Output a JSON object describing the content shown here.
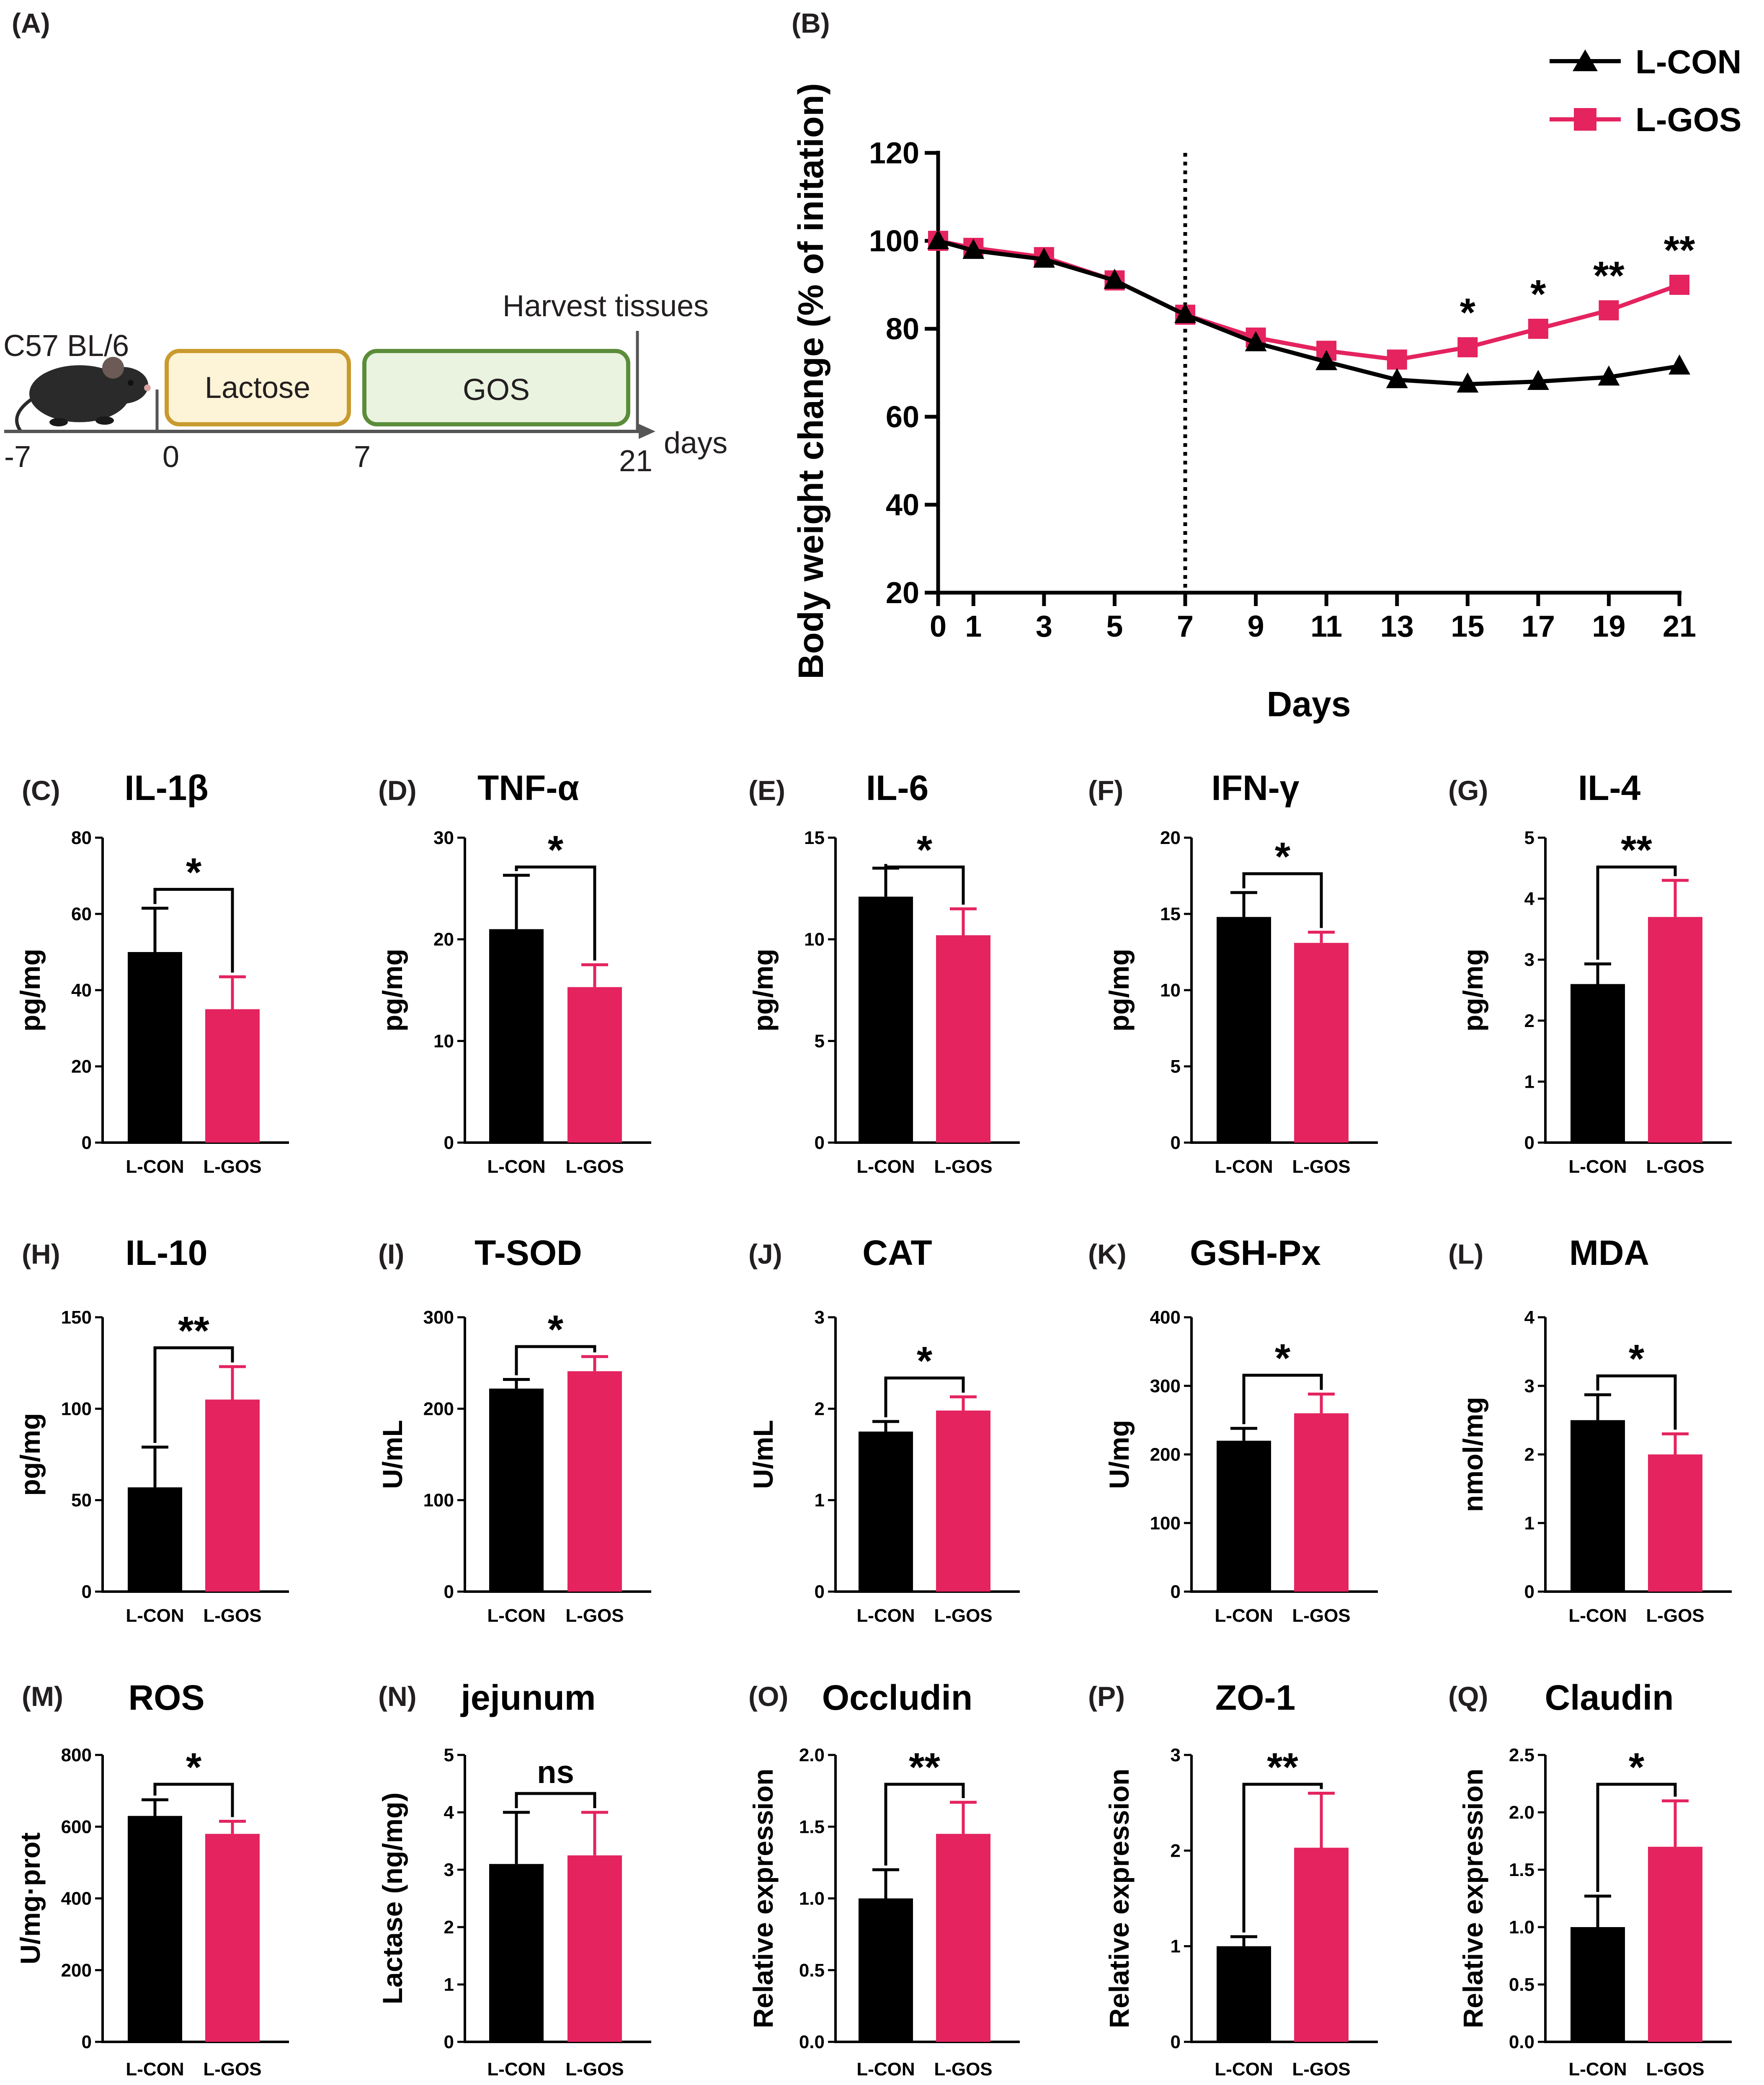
{
  "colors": {
    "con": "#000000",
    "gos": "#e4235f",
    "lactose_border": "#c99a2e",
    "lactose_fill": "#fdf3d6",
    "gos_border": "#5b8c3a",
    "gos_fill": "#e9f3df"
  },
  "panel_a": {
    "label": "(A)",
    "mouse_label": "C57 BL/6",
    "harvest_label": "Harvest tissues",
    "lactose_label": "Lactose",
    "gos_label": "GOS",
    "axis_unit": "days",
    "ticks": [
      "-7",
      "0",
      "7",
      "21"
    ],
    "mouse_icon": "mouse-icon"
  },
  "panel_b": {
    "label": "(B)",
    "chart_data": {
      "type": "line",
      "xlabel": "Days",
      "ylabel": "Body weight change (% of initation)",
      "x": [
        0,
        1,
        3,
        5,
        7,
        9,
        11,
        13,
        15,
        17,
        19,
        21
      ],
      "xticks": [
        "0",
        "1",
        "3",
        "5",
        "7",
        "9",
        "11",
        "13",
        "15",
        "17",
        "19",
        "21"
      ],
      "yticks": [
        "20",
        "40",
        "60",
        "80",
        "100",
        "120"
      ],
      "ylim": [
        20,
        120
      ],
      "xlim": [
        0,
        21
      ],
      "vline_x": 7,
      "series": [
        {
          "name": "L-CON",
          "marker": "triangle",
          "values": [
            100,
            97.8,
            95.8,
            91,
            83.2,
            76.8,
            72.5,
            68.4,
            67.4,
            68,
            69,
            71.5
          ]
        },
        {
          "name": "L-GOS",
          "marker": "square",
          "values": [
            100,
            98.4,
            96.3,
            91,
            83.2,
            78,
            75,
            73,
            75.8,
            80,
            84.2,
            90
          ]
        }
      ],
      "annotations": [
        {
          "x": 15,
          "text": "*"
        },
        {
          "x": 17,
          "text": "*"
        },
        {
          "x": 19,
          "text": "**"
        },
        {
          "x": 21,
          "text": "**"
        }
      ],
      "legend_position": "top-right"
    }
  },
  "bar_panels": [
    {
      "label": "(C)",
      "title": "IL-1β",
      "ylabel": "pg/mg",
      "yticks": [
        "0",
        "20",
        "40",
        "60",
        "80"
      ],
      "ymax": 80,
      "categories": [
        "L-CON",
        "L-GOS"
      ],
      "values": [
        50,
        35
      ],
      "errors": [
        11.5,
        8.5
      ],
      "sig": "*"
    },
    {
      "label": "(D)",
      "title": "TNF-α",
      "ylabel": "pg/mg",
      "yticks": [
        "0",
        "10",
        "20",
        "30"
      ],
      "ymax": 30,
      "categories": [
        "L-CON",
        "L-GOS"
      ],
      "values": [
        21,
        15.3
      ],
      "errors": [
        5.3,
        2.2
      ],
      "sig": "*"
    },
    {
      "label": "(E)",
      "title": "IL-6",
      "ylabel": "pg/mg",
      "yticks": [
        "0",
        "5",
        "10",
        "15"
      ],
      "ymax": 15,
      "categories": [
        "L-CON",
        "L-GOS"
      ],
      "values": [
        12.1,
        10.2
      ],
      "errors": [
        1.4,
        1.3
      ],
      "sig": "*"
    },
    {
      "label": "(F)",
      "title": "IFN-γ",
      "ylabel": "pg/mg",
      "yticks": [
        "0",
        "5",
        "10",
        "15",
        "20"
      ],
      "ymax": 20,
      "categories": [
        "L-CON",
        "L-GOS"
      ],
      "values": [
        14.8,
        13.1
      ],
      "errors": [
        1.6,
        0.7
      ],
      "sig": "*"
    },
    {
      "label": "(G)",
      "title": "IL-4",
      "ylabel": "pg/mg",
      "yticks": [
        "0",
        "1",
        "2",
        "3",
        "4",
        "5"
      ],
      "ymax": 5,
      "categories": [
        "L-CON",
        "L-GOS"
      ],
      "values": [
        2.6,
        3.7
      ],
      "errors": [
        0.33,
        0.6
      ],
      "sig": "**"
    },
    {
      "label": "(H)",
      "title": "IL-10",
      "ylabel": "pg/mg",
      "yticks": [
        "0",
        "50",
        "100",
        "150"
      ],
      "ymax": 150,
      "categories": [
        "L-CON",
        "L-GOS"
      ],
      "values": [
        57,
        105
      ],
      "errors": [
        22,
        18
      ],
      "sig": "**"
    },
    {
      "label": "(I)",
      "title": "T-SOD",
      "ylabel": "U/mL",
      "yticks": [
        "0",
        "100",
        "200",
        "300"
      ],
      "ymax": 300,
      "categories": [
        "L-CON",
        "L-GOS"
      ],
      "values": [
        222,
        241
      ],
      "errors": [
        10,
        16
      ],
      "sig": "*"
    },
    {
      "label": "(J)",
      "title": "CAT",
      "ylabel": "U/mL",
      "yticks": [
        "0",
        "1",
        "2",
        "3"
      ],
      "ymax": 3,
      "categories": [
        "L-CON",
        "L-GOS"
      ],
      "values": [
        1.75,
        1.98
      ],
      "errors": [
        0.11,
        0.15
      ],
      "sig": "*"
    },
    {
      "label": "(K)",
      "title": "GSH-Px",
      "ylabel": "U/mg",
      "yticks": [
        "0",
        "100",
        "200",
        "300",
        "400"
      ],
      "ymax": 400,
      "categories": [
        "L-CON",
        "L-GOS"
      ],
      "values": [
        220,
        260
      ],
      "errors": [
        18,
        28
      ],
      "sig": "*"
    },
    {
      "label": "(L)",
      "title": "MDA",
      "ylabel": "nmol/mg",
      "yticks": [
        "0",
        "1",
        "2",
        "3",
        "4"
      ],
      "ymax": 4,
      "categories": [
        "L-CON",
        "L-GOS"
      ],
      "values": [
        2.5,
        2.0
      ],
      "errors": [
        0.37,
        0.3
      ],
      "sig": "*"
    },
    {
      "label": "(M)",
      "title": "ROS",
      "ylabel": "U/mg·prot",
      "yticks": [
        "0",
        "200",
        "400",
        "600",
        "800"
      ],
      "ymax": 800,
      "categories": [
        "L-CON",
        "L-GOS"
      ],
      "values": [
        630,
        580
      ],
      "errors": [
        45,
        35
      ],
      "sig": "*"
    },
    {
      "label": "(N)",
      "title": "jejunum",
      "ylabel": "Lactase  (ng/mg)",
      "yticks": [
        "0",
        "1",
        "2",
        "3",
        "4",
        "5"
      ],
      "ymax": 5,
      "categories": [
        "L-CON",
        "L-GOS"
      ],
      "values": [
        3.1,
        3.25
      ],
      "errors": [
        0.9,
        0.75
      ],
      "sig": "ns"
    },
    {
      "label": "(O)",
      "title": "Occludin",
      "ylabel": "Relative expression",
      "yticks": [
        "0.0",
        "0.5",
        "1.0",
        "1.5",
        "2.0"
      ],
      "ymax": 2,
      "categories": [
        "L-CON",
        "L-GOS"
      ],
      "values": [
        1.0,
        1.45
      ],
      "errors": [
        0.2,
        0.22
      ],
      "sig": "**"
    },
    {
      "label": "(P)",
      "title": "ZO-1",
      "ylabel": "Relative expression",
      "yticks": [
        "0",
        "1",
        "2",
        "3"
      ],
      "ymax": 3,
      "categories": [
        "L-CON",
        "L-GOS"
      ],
      "values": [
        1.0,
        2.03
      ],
      "errors": [
        0.1,
        0.57
      ],
      "sig": "**"
    },
    {
      "label": "(Q)",
      "title": "Claudin",
      "ylabel": "Relative expression",
      "yticks": [
        "0.0",
        "0.5",
        "1.0",
        "1.5",
        "2.0",
        "2.5"
      ],
      "ymax": 2.5,
      "categories": [
        "L-CON",
        "L-GOS"
      ],
      "values": [
        1.0,
        1.7
      ],
      "errors": [
        0.27,
        0.4
      ],
      "sig": "*"
    }
  ]
}
